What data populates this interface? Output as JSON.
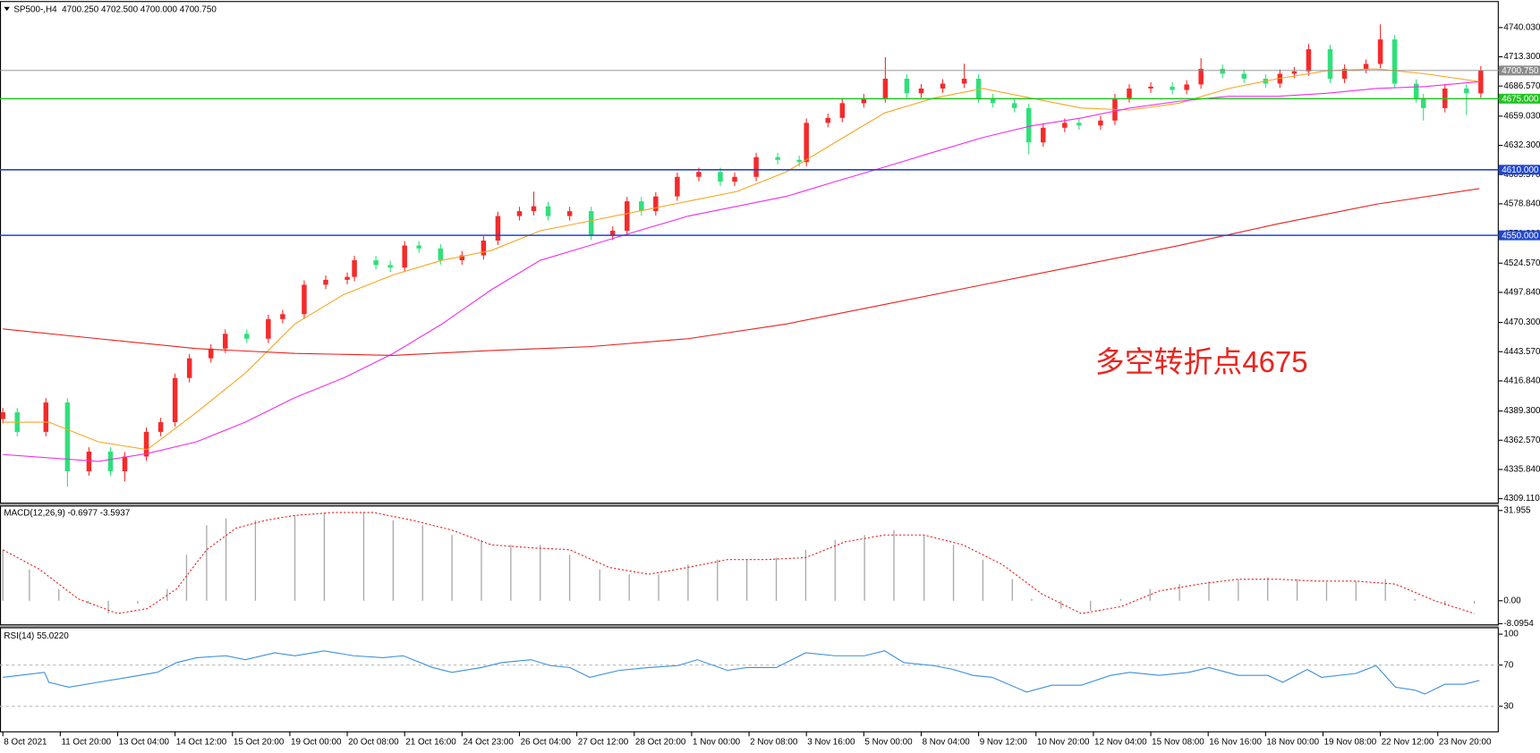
{
  "chart_data": [
    {
      "type": "candlestick",
      "title": "SP500-,H4",
      "quote": "4700.250 4702.500 4700.000 4700.750",
      "up_color": "#f52a2a",
      "down_color": "#2fe07a",
      "xlim": [
        -0.4,
        208.5
      ],
      "ylim": [
        4305.5,
        4763.4
      ],
      "yticks": [
        {
          "value": 4740.03,
          "label": "4740.030"
        },
        {
          "value": 4713.3,
          "label": "4713.300"
        },
        {
          "value": 4686.57,
          "label": "4686.570"
        },
        {
          "value": 4659.03,
          "label": "4659.030"
        },
        {
          "value": 4632.3,
          "label": "4632.300"
        },
        {
          "value": 4605.57,
          "label": "4605.570"
        },
        {
          "value": 4578.84,
          "label": "4578.840"
        },
        {
          "value": 4551.3,
          "label": "4551.300"
        },
        {
          "value": 4524.57,
          "label": "4524.570"
        },
        {
          "value": 4497.84,
          "label": "4497.840"
        },
        {
          "value": 4470.3,
          "label": "4470.300"
        },
        {
          "value": 4443.57,
          "label": "4443.570"
        },
        {
          "value": 4416.84,
          "label": "4416.840"
        },
        {
          "value": 4389.3,
          "label": "4389.300"
        },
        {
          "value": 4362.57,
          "label": "4362.570"
        },
        {
          "value": 4335.84,
          "label": "4335.840"
        },
        {
          "value": 4309.11,
          "label": "4309.110"
        }
      ],
      "x": [
        0,
        2,
        6,
        9,
        12,
        15,
        17,
        20,
        22,
        24,
        26,
        29,
        31,
        34,
        37,
        39,
        42,
        45,
        48,
        49,
        52,
        54,
        56,
        58,
        61,
        64,
        67,
        69,
        72,
        74,
        76,
        79,
        82,
        85,
        87,
        89,
        91,
        94,
        97,
        100,
        102,
        105,
        108,
        111,
        112,
        115,
        117,
        120,
        123,
        126,
        128,
        131,
        134,
        136,
        138,
        141,
        143,
        145,
        148,
        150,
        153,
        155,
        157,
        160,
        163,
        165,
        167,
        170,
        173,
        176,
        178,
        180,
        182,
        185,
        187,
        190,
        192,
        194,
        197,
        198,
        201,
        204,
        206
      ],
      "open": [
        4382.0,
        4388.1,
        4370.2,
        4397.1,
        4334.2,
        4352.2,
        4334.2,
        4347.7,
        4370.2,
        4379.1,
        4419.5,
        4437.5,
        4446.4,
        4459.9,
        4455.4,
        4473.4,
        4477.9,
        4504.8,
        4509.3,
        4512.0,
        4527.2,
        4522.8,
        4520.5,
        4540.7,
        4538.0,
        4527.2,
        4531.7,
        4545.2,
        4567.6,
        4572.1,
        4576.6,
        4567.6,
        4572.1,
        4549.7,
        4554.2,
        4581.1,
        4572.1,
        4585.6,
        4603.5,
        4608.0,
        4599.1,
        4603.5,
        4621.5,
        4619.0,
        4617.0,
        4652.9,
        4657.4,
        4670.9,
        4675.4,
        4693.3,
        4679.9,
        4684.3,
        4688.8,
        4693.3,
        4675.4,
        4670.9,
        4666.4,
        4635.0,
        4648.4,
        4652.9,
        4650.5,
        4655.0,
        4675.4,
        4684.3,
        4686.0,
        4683.0,
        4688.0,
        4702.3,
        4697.8,
        4693.3,
        4688.8,
        4697.8,
        4700.0,
        4720.2,
        4693.3,
        4702.3,
        4706.8,
        4729.2,
        4688.8,
        4675.4,
        4666.4,
        4684.3,
        4679.9
      ],
      "high": [
        4392.1,
        4392.1,
        4401.1,
        4401.1,
        4356.2,
        4356.2,
        4351.7,
        4374.2,
        4383.1,
        4423.5,
        4441.5,
        4450.4,
        4463.9,
        4463.9,
        4477.4,
        4481.9,
        4508.8,
        4513.3,
        4516.0,
        4531.2,
        4531.2,
        4526.8,
        4544.7,
        4544.7,
        4542.0,
        4535.7,
        4549.2,
        4571.6,
        4576.1,
        4590.0,
        4580.6,
        4576.1,
        4576.1,
        4558.2,
        4585.1,
        4585.1,
        4589.6,
        4607.5,
        4612.0,
        4612.0,
        4607.5,
        4625.5,
        4625.5,
        4623.0,
        4656.9,
        4661.4,
        4674.9,
        4679.4,
        4713.0,
        4697.3,
        4688.3,
        4692.8,
        4707.0,
        4697.3,
        4679.4,
        4674.9,
        4670.4,
        4652.4,
        4656.9,
        4656.9,
        4659.0,
        4679.4,
        4688.3,
        4690.0,
        4690.0,
        4692.0,
        4712.0,
        4706.3,
        4701.8,
        4697.3,
        4701.8,
        4704.0,
        4725.0,
        4724.2,
        4706.3,
        4710.8,
        4743.0,
        4733.2,
        4692.8,
        4679.4,
        4688.3,
        4688.3,
        4704.8
      ],
      "low": [
        4378.0,
        4366.2,
        4366.2,
        4320.0,
        4330.2,
        4330.2,
        4325.0,
        4343.7,
        4366.2,
        4375.1,
        4415.5,
        4433.5,
        4442.4,
        4451.4,
        4451.4,
        4469.4,
        4473.9,
        4500.8,
        4505.3,
        4508.0,
        4518.8,
        4516.5,
        4516.5,
        4534.0,
        4523.2,
        4523.2,
        4527.7,
        4541.2,
        4563.6,
        4568.1,
        4563.6,
        4563.6,
        4545.7,
        4545.7,
        4550.2,
        4568.1,
        4568.1,
        4581.6,
        4599.5,
        4595.1,
        4595.1,
        4599.5,
        4615.0,
        4613.0,
        4613.0,
        4648.9,
        4653.4,
        4666.9,
        4671.4,
        4675.9,
        4675.9,
        4680.3,
        4684.8,
        4671.4,
        4666.9,
        4662.4,
        4624.0,
        4631.0,
        4644.4,
        4646.5,
        4646.5,
        4651.0,
        4671.4,
        4680.3,
        4679.0,
        4679.0,
        4684.0,
        4693.8,
        4689.3,
        4684.8,
        4684.8,
        4693.8,
        4696.0,
        4689.3,
        4689.3,
        4698.3,
        4702.8,
        4684.8,
        4671.4,
        4655.0,
        4662.4,
        4660.0,
        4675.9
      ],
      "close": [
        4388.1,
        4370.2,
        4397.1,
        4334.2,
        4352.2,
        4334.2,
        4347.7,
        4370.2,
        4379.1,
        4419.5,
        4437.5,
        4446.4,
        4459.9,
        4455.4,
        4473.4,
        4477.9,
        4504.8,
        4509.3,
        4512.0,
        4527.2,
        4522.8,
        4520.5,
        4540.7,
        4538.0,
        4527.2,
        4531.7,
        4545.2,
        4567.6,
        4572.1,
        4576.6,
        4567.6,
        4572.1,
        4549.7,
        4554.2,
        4581.1,
        4572.1,
        4585.6,
        4603.5,
        4608.0,
        4599.1,
        4603.5,
        4621.5,
        4619.0,
        4617.0,
        4652.9,
        4657.4,
        4670.9,
        4675.4,
        4693.3,
        4679.9,
        4684.3,
        4688.8,
        4693.3,
        4675.4,
        4670.9,
        4666.4,
        4635.0,
        4648.4,
        4652.9,
        4650.5,
        4655.0,
        4675.4,
        4684.3,
        4686.0,
        4683.0,
        4688.0,
        4702.3,
        4697.8,
        4693.3,
        4688.8,
        4697.8,
        4700.0,
        4720.2,
        4693.3,
        4702.3,
        4706.8,
        4729.2,
        4688.8,
        4675.4,
        4666.4,
        4684.3,
        4679.9,
        4700.75
      ],
      "lines": [
        {
          "color": "#f5a623",
          "x": [
            0,
            6.4,
            13.3,
            20.1,
            27.0,
            33.8,
            40.7,
            47.5,
            54.4,
            61.2,
            68.1,
            74.9,
            81.8,
            88.6,
            95.5,
            102.3,
            109.2,
            116.0,
            122.9,
            129.7,
            136.6,
            143.4,
            150.3,
            157.1,
            164.0,
            170.8,
            177.7,
            184.5,
            191.4,
            198.2,
            205.8
          ],
          "values": [
            4379.1,
            4379.1,
            4361.2,
            4354.0,
            4388.1,
            4424.0,
            4468.9,
            4495.8,
            4513.8,
            4527.2,
            4536.2,
            4554.2,
            4563.1,
            4572.1,
            4581.1,
            4590.1,
            4608.0,
            4635.0,
            4661.9,
            4675.4,
            4684.3,
            4675.4,
            4666.4,
            4664.6,
            4670.9,
            4684.3,
            4693.3,
            4700.5,
            4702.3,
            4697.8,
            4690.6
          ]
        },
        {
          "color": "#ee2ee8",
          "x": [
            0,
            13.3,
            20.1,
            27.0,
            33.8,
            40.7,
            47.5,
            54.4,
            61.2,
            68.1,
            74.9,
            81.8,
            88.6,
            95.5,
            102.3,
            109.2,
            116.0,
            122.9,
            129.7,
            136.6,
            143.4,
            150.3,
            157.1,
            164.0,
            170.8,
            177.7,
            184.5,
            191.4,
            198.2,
            205.8
          ],
          "values": [
            4349.5,
            4343.2,
            4350.4,
            4361.2,
            4379.1,
            4401.6,
            4419.5,
            4442.0,
            4468.9,
            4500.3,
            4527.2,
            4540.7,
            4554.2,
            4567.6,
            4576.6,
            4585.6,
            4599.1,
            4612.5,
            4626.0,
            4639.5,
            4650.2,
            4657.4,
            4666.4,
            4672.7,
            4677.2,
            4677.2,
            4679.9,
            4684.3,
            4686.1,
            4690.6
          ]
        },
        {
          "color": "#e8211d",
          "x": [
            0,
            13.3,
            27.0,
            40.7,
            54.4,
            68.1,
            81.8,
            95.5,
            109.2,
            122.9,
            136.6,
            150.3,
            164.0,
            177.7,
            191.4,
            205.8
          ],
          "values": [
            4464.4,
            4455.4,
            4446.4,
            4442.0,
            4440.2,
            4444.7,
            4448.2,
            4455.4,
            4468.9,
            4486.8,
            4504.8,
            4522.8,
            4540.7,
            4560.5,
            4578.4,
            4592.8
          ]
        }
      ],
      "hlines": [
        {
          "value": 4700.75,
          "label": "4700.750",
          "color": "#8c8c8c"
        },
        {
          "value": 4675,
          "label": "4675.000",
          "color": "#22c322"
        },
        {
          "value": 4610,
          "label": "4610.000",
          "color": "#2146d0"
        },
        {
          "value": 4550,
          "label": "4550.000",
          "color": "#2146d0"
        }
      ],
      "annotation": {
        "text": "多空转折点4675",
        "color": "#e8251f"
      }
    },
    {
      "type": "macd",
      "title": "MACD(12,26,9) -0.6977 -3.5937",
      "xlim": [
        -0.4,
        208.5
      ],
      "ylim": [
        -8.34,
        33.69
      ],
      "yticks": [
        31.955,
        {
          "value": 0,
          "label": "0.00"
        },
        -8.0954
      ],
      "histogram": {
        "color": "#a8a8a8",
        "x": [
          0,
          3.7,
          7.8,
          11.9,
          14.7,
          18.8,
          22.9,
          25.6,
          28.4,
          31.1,
          35.2,
          40.7,
          44.8,
          50.3,
          54.4,
          58.5,
          62.6,
          66.7,
          70.8,
          74.9,
          79.0,
          83.2,
          87.3,
          91.4,
          95.5,
          99.6,
          103.7,
          107.8,
          111.9,
          116.0,
          120.1,
          124.2,
          128.4,
          132.5,
          136.6,
          140.7,
          143.4,
          147.5,
          151.6,
          155.8,
          159.9,
          164.0,
          168.1,
          172.2,
          176.3,
          180.4,
          184.5,
          188.6,
          192.7,
          196.8,
          201.0,
          205.1
        ],
        "values": [
          18.06,
          11.11,
          4.17,
          -1.04,
          -4.51,
          -1.04,
          4.17,
          16.32,
          26.74,
          29.17,
          28.48,
          30.22,
          31.26,
          31.26,
          28.48,
          26.74,
          23.27,
          21.53,
          19.8,
          19.8,
          16.32,
          11.11,
          9.38,
          9.38,
          12.85,
          14.59,
          14.59,
          15.28,
          18.06,
          21.53,
          23.27,
          25.01,
          23.27,
          19.8,
          14.59,
          7.64,
          0.69,
          -2.78,
          -3.47,
          0.69,
          4.17,
          5.9,
          6.95,
          7.64,
          8.34,
          7.64,
          6.6,
          6.95,
          7.64,
          0.69,
          -1.74,
          -1.04
        ]
      },
      "signal": {
        "color": "#e8211d",
        "x": [
          0,
          5.1,
          10.5,
          16.0,
          20.1,
          24.2,
          28.4,
          32.5,
          36.6,
          40.7,
          46.2,
          51.6,
          57.1,
          62.6,
          68.1,
          73.6,
          79.0,
          84.5,
          90.0,
          95.5,
          101.0,
          106.4,
          111.9,
          117.4,
          122.9,
          128.4,
          133.8,
          139.3,
          144.8,
          150.3,
          155.8,
          161.2,
          166.7,
          172.2,
          177.7,
          183.2,
          188.6,
          194.1,
          199.6,
          205.1
        ],
        "values": [
          18.06,
          11.11,
          0.69,
          -4.51,
          -2.78,
          4.17,
          18.06,
          25.7,
          28.48,
          30.22,
          31.26,
          31.26,
          28.48,
          25.01,
          19.8,
          18.75,
          18.06,
          11.81,
          9.38,
          11.81,
          14.59,
          14.59,
          15.28,
          20.84,
          23.27,
          23.27,
          19.8,
          12.85,
          2.43,
          -4.51,
          -2.08,
          3.47,
          5.9,
          7.64,
          7.64,
          6.95,
          6.95,
          5.9,
          0,
          -4.51
        ]
      }
    },
    {
      "type": "line",
      "title": "RSI(14) 55.0220",
      "xlim": [
        -0.4,
        208.5
      ],
      "ylim": [
        5.7,
        105.7
      ],
      "yticks": [
        100,
        70,
        30
      ],
      "levels": [
        70,
        30
      ],
      "color": "#3b8fdc",
      "x": [
        0,
        2.3,
        5.8,
        6.4,
        9.2,
        13.3,
        17.4,
        21.5,
        24.2,
        27.0,
        31.1,
        33.8,
        37.9,
        40.7,
        44.8,
        48.9,
        53.0,
        55.8,
        59.9,
        62.6,
        66.7,
        69.5,
        73.6,
        76.3,
        79.0,
        81.8,
        85.9,
        90.0,
        94.1,
        96.8,
        101.0,
        103.7,
        107.8,
        111.9,
        116.0,
        120.1,
        122.9,
        125.6,
        129.7,
        132.5,
        135.2,
        137.9,
        142.7,
        146.2,
        150.3,
        154.4,
        157.1,
        161.2,
        165.3,
        168.1,
        172.2,
        176.3,
        178.4,
        181.8,
        183.8,
        188.6,
        191.4,
        194.1,
        196.8,
        198.2,
        201.0,
        203.7,
        205.8
      ],
      "values": [
        58.1,
        60.0,
        62.9,
        53.3,
        48.6,
        53.3,
        58.1,
        62.9,
        72.4,
        77.1,
        79.0,
        75.2,
        81.9,
        79.0,
        83.8,
        79.0,
        77.1,
        79.0,
        67.6,
        62.9,
        67.6,
        72.4,
        75.2,
        69.5,
        67.6,
        58.1,
        64.8,
        67.6,
        69.5,
        75.2,
        64.8,
        67.6,
        67.6,
        81.9,
        79.0,
        79.0,
        83.8,
        72.4,
        69.5,
        65.7,
        60.0,
        58.1,
        43.8,
        50.5,
        50.5,
        60.0,
        62.9,
        60.0,
        62.9,
        67.6,
        60.0,
        60.0,
        53.3,
        65.7,
        58.1,
        61.9,
        69.5,
        48.6,
        45.7,
        41.9,
        51.4,
        51.4,
        55.0
      ],
      "xticks": [
        {
          "value": 0,
          "label": "8 Oct 2021"
        },
        {
          "value": 8,
          "label": "11 Oct 20:00"
        },
        {
          "value": 16,
          "label": "13 Oct 04:00"
        },
        {
          "value": 24,
          "label": "14 Oct 12:00"
        },
        {
          "value": 32,
          "label": "15 Oct 20:00"
        },
        {
          "value": 40,
          "label": "19 Oct 00:00"
        },
        {
          "value": 48,
          "label": "20 Oct 08:00"
        },
        {
          "value": 56,
          "label": "21 Oct 16:00"
        },
        {
          "value": 64,
          "label": "24 Oct 23:00"
        },
        {
          "value": 72,
          "label": "26 Oct 04:00"
        },
        {
          "value": 80,
          "label": "27 Oct 12:00"
        },
        {
          "value": 88,
          "label": "28 Oct 20:00"
        },
        {
          "value": 96,
          "label": "1 Nov 00:00"
        },
        {
          "value": 104,
          "label": "2 Nov 08:00"
        },
        {
          "value": 112,
          "label": "3 Nov 16:00"
        },
        {
          "value": 120,
          "label": "5 Nov 00:00"
        },
        {
          "value": 128,
          "label": "8 Nov 04:00"
        },
        {
          "value": 136,
          "label": "9 Nov 12:00"
        },
        {
          "value": 144,
          "label": "10 Nov 20:00"
        },
        {
          "value": 152,
          "label": "12 Nov 04:00"
        },
        {
          "value": 160,
          "label": "15 Nov 08:00"
        },
        {
          "value": 168,
          "label": "16 Nov 16:00"
        },
        {
          "value": 176,
          "label": "18 Nov 00:00"
        },
        {
          "value": 184,
          "label": "19 Nov 08:00"
        },
        {
          "value": 192,
          "label": "22 Nov 12:00"
        },
        {
          "value": 200,
          "label": "23 Nov 20:00"
        }
      ]
    }
  ]
}
